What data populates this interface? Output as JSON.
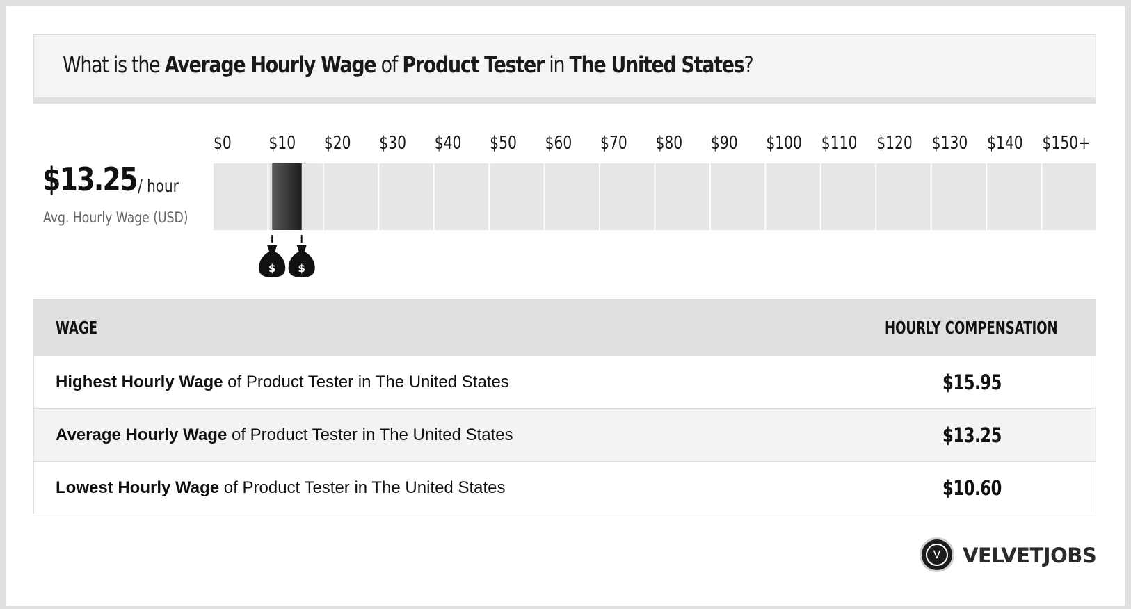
{
  "title": {
    "prefix": "What is the ",
    "metric": "Average Hourly Wage",
    "of_text": " of ",
    "job": "Product Tester",
    "in_text": " in ",
    "location": "The United States",
    "suffix": "?"
  },
  "summary": {
    "value": "$13.25",
    "unit": "/ hour",
    "caption": "Avg. Hourly Wage (USD)"
  },
  "chart_data": {
    "type": "bar",
    "title": "",
    "tick_labels": [
      "$0",
      "$10",
      "$20",
      "$30",
      "$40",
      "$50",
      "$60",
      "$70",
      "$80",
      "$90",
      "$100",
      "$110",
      "$120",
      "$130",
      "$140",
      "$150+"
    ],
    "xlim": [
      0,
      160
    ],
    "range": {
      "low": 10.6,
      "high": 15.95,
      "average": 13.25
    },
    "markers": [
      {
        "name": "lowest",
        "value": 10.6,
        "icon": "money-bag-icon"
      },
      {
        "name": "highest",
        "value": 15.95,
        "icon": "money-bag-icon"
      }
    ],
    "colors": {
      "track": "#e6e6e6",
      "bar_dark": "#1c1c1c",
      "bar_light": "#5a5a5a"
    }
  },
  "table": {
    "headers": {
      "left": "WAGE",
      "right": "HOURLY COMPENSATION"
    },
    "rows": [
      {
        "bold": "Highest Hourly Wage",
        "rest": " of Product Tester in The United States",
        "value": "$15.95"
      },
      {
        "bold": "Average Hourly Wage",
        "rest": " of Product Tester in The United States",
        "value": "$13.25"
      },
      {
        "bold": "Lowest Hourly Wage",
        "rest": " of Product Tester in The United States",
        "value": "$10.60"
      }
    ]
  },
  "brand": {
    "logo_letter": "V",
    "name": "VELVETJOBS"
  }
}
